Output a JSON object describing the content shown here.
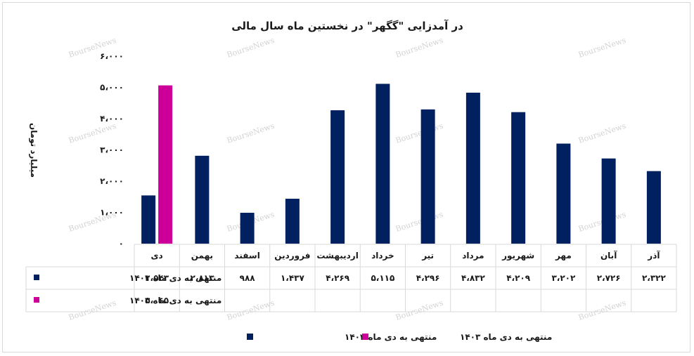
{
  "chart_data": {
    "type": "bar",
    "title": "در آمدزایی \"گگهر\" در نخستین ماه سال مالی",
    "ylabel": "میلیارد تومان",
    "ylim": [
      0,
      6000
    ],
    "y_ticks": [
      "۰",
      "۱،۰۰۰",
      "۲،۰۰۰",
      "۳،۰۰۰",
      "۴،۰۰۰",
      "۵،۰۰۰",
      "۶،۰۰۰"
    ],
    "categories": [
      "دی",
      "بهمن",
      "اسفند",
      "فروردین",
      "اردیبهشت",
      "خرداد",
      "تیر",
      "مرداد",
      "شهریور",
      "مهر",
      "آبان",
      "آذر"
    ],
    "series": [
      {
        "name": "منتهی به دی ماه ۱۴۰۲",
        "color": "#002060",
        "values": [
          1543,
          2813,
          988,
          1437,
          4269,
          5115,
          4296,
          4832,
          4209,
          3202,
          2726,
          2322
        ],
        "labels": [
          "۱،۵۴۳",
          "۲،۸۱۳",
          "۹۸۸",
          "۱،۴۳۷",
          "۴،۲۶۹",
          "۵،۱۱۵",
          "۴،۲۹۶",
          "۴،۸۳۲",
          "۴،۲۰۹",
          "۳،۲۰۲",
          "۲،۷۲۶",
          "۲،۳۲۲"
        ]
      },
      {
        "name": "منتهی به دی ماه ۱۴۰۳",
        "color": "#CC0099",
        "values": [
          5065,
          null,
          null,
          null,
          null,
          null,
          null,
          null,
          null,
          null,
          null,
          null
        ],
        "labels": [
          "۵،۰۶۵",
          "",
          "",
          "",
          "",
          "",
          "",
          "",
          "",
          "",
          "",
          ""
        ]
      }
    ],
    "legend_position": "bottom",
    "grid": false,
    "watermark": "BourseNews"
  }
}
